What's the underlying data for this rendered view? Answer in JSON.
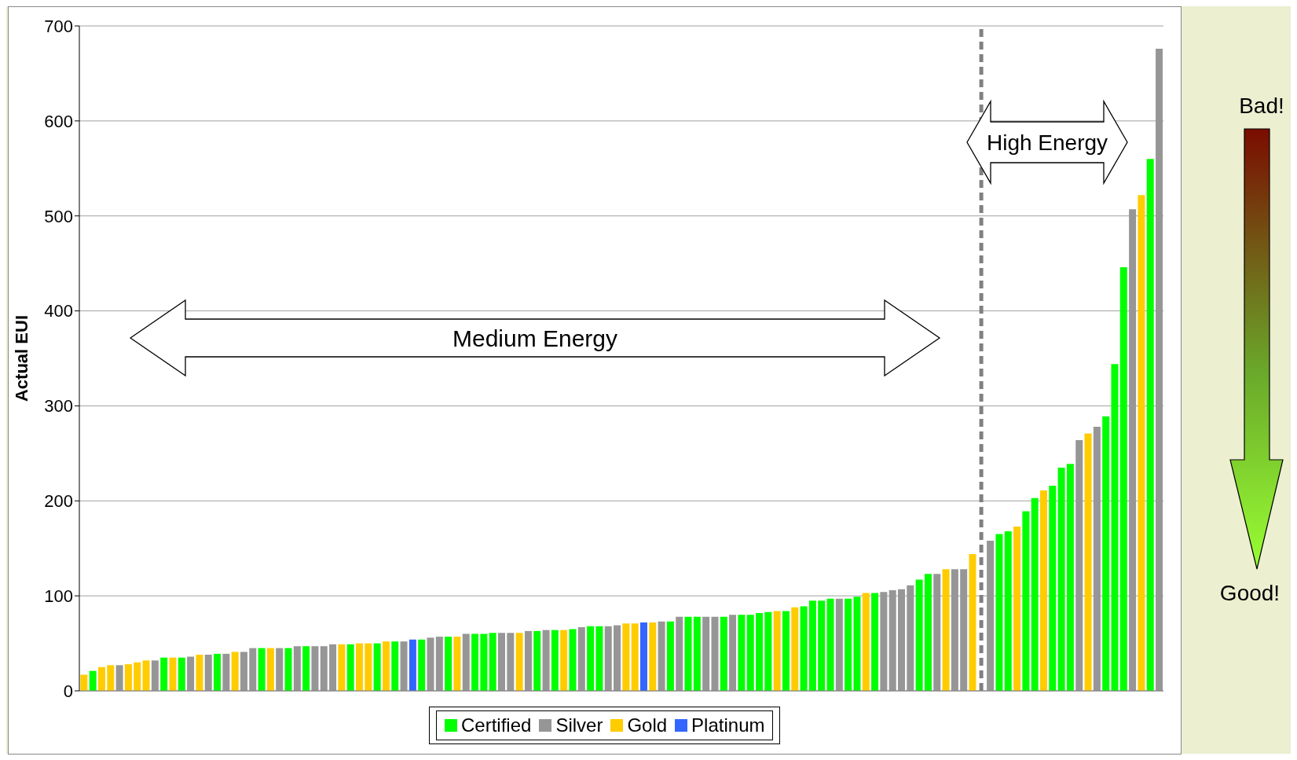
{
  "chart_data": {
    "type": "bar",
    "ylabel": "Actual EUI",
    "stacked": true,
    "categories": [
      null,
      null,
      null,
      null,
      null,
      null,
      null,
      null,
      null,
      null,
      null,
      null,
      null,
      null,
      null,
      null,
      null,
      null,
      null,
      null,
      null,
      null,
      null,
      null,
      null,
      null,
      null,
      null,
      null,
      null,
      null,
      null,
      null,
      null,
      null,
      null,
      null,
      null,
      null,
      null,
      null,
      null,
      null,
      null,
      null,
      null,
      null,
      null,
      null,
      null,
      null,
      null,
      null,
      null,
      null,
      null,
      null,
      null,
      null,
      null,
      null,
      null,
      null,
      null,
      null,
      null,
      null,
      null,
      null,
      null,
      null,
      null,
      null,
      null,
      null,
      null,
      null,
      null,
      null,
      null,
      null,
      null,
      null,
      null,
      null,
      null,
      null,
      null,
      null,
      null,
      null,
      null,
      null,
      null,
      null,
      null,
      null,
      null,
      null,
      null,
      null,
      null,
      null,
      null,
      null,
      null,
      null,
      null,
      null,
      null,
      null,
      null,
      null,
      null,
      null,
      null,
      null,
      null,
      null,
      null,
      null,
      null
    ],
    "series": [
      {
        "name": "Certified",
        "color": "#00ff00",
        "values": [
          null,
          21,
          null,
          null,
          null,
          null,
          null,
          null,
          null,
          35,
          null,
          35,
          null,
          null,
          null,
          39,
          null,
          null,
          null,
          null,
          45,
          null,
          null,
          45,
          null,
          47,
          null,
          null,
          null,
          null,
          49,
          null,
          null,
          50,
          null,
          52,
          null,
          null,
          54,
          null,
          null,
          57,
          null,
          null,
          60,
          60,
          61,
          null,
          null,
          null,
          null,
          63,
          null,
          64,
          null,
          65,
          null,
          68,
          68,
          null,
          null,
          null,
          null,
          null,
          null,
          null,
          73,
          null,
          78,
          78,
          null,
          null,
          78,
          null,
          80,
          80,
          82,
          83,
          null,
          84,
          null,
          89,
          95,
          95,
          97,
          null,
          97,
          99,
          null,
          103,
          null,
          null,
          null,
          null,
          117,
          123,
          null,
          null,
          null,
          null,
          null,
          null,
          null,
          165,
          168,
          null,
          189,
          203,
          null,
          216,
          235,
          239,
          null,
          null,
          null,
          289,
          344,
          446,
          null,
          null,
          560,
          null
        ]
      },
      {
        "name": "Silver",
        "color": "#969696",
        "values": [
          null,
          null,
          null,
          null,
          27,
          null,
          null,
          null,
          32,
          null,
          null,
          null,
          36,
          null,
          38,
          null,
          39,
          null,
          41,
          45,
          null,
          null,
          45,
          null,
          47,
          null,
          47,
          47,
          49,
          null,
          null,
          null,
          null,
          null,
          null,
          null,
          52,
          null,
          null,
          56,
          57,
          null,
          null,
          60,
          null,
          null,
          null,
          61,
          61,
          null,
          63,
          null,
          64,
          null,
          null,
          null,
          67,
          null,
          null,
          68,
          69,
          null,
          null,
          null,
          null,
          73,
          null,
          78,
          null,
          null,
          78,
          78,
          null,
          80,
          null,
          null,
          null,
          null,
          null,
          null,
          null,
          null,
          null,
          null,
          null,
          97,
          null,
          null,
          null,
          null,
          104,
          106,
          107,
          111,
          null,
          null,
          123,
          null,
          128,
          128,
          null,
          null,
          158,
          null,
          null,
          null,
          null,
          null,
          null,
          null,
          null,
          null,
          264,
          null,
          278,
          null,
          null,
          null,
          507,
          null,
          null,
          676
        ]
      },
      {
        "name": "Gold",
        "color": "#ffcc00",
        "values": [
          17,
          null,
          25,
          27,
          null,
          28,
          30,
          32,
          null,
          null,
          35,
          null,
          null,
          38,
          null,
          null,
          null,
          41,
          null,
          null,
          null,
          45,
          null,
          null,
          null,
          null,
          null,
          null,
          null,
          49,
          null,
          50,
          50,
          null,
          52,
          null,
          null,
          null,
          null,
          null,
          null,
          null,
          57,
          null,
          null,
          null,
          null,
          null,
          null,
          61,
          null,
          null,
          null,
          null,
          64,
          null,
          null,
          null,
          null,
          null,
          null,
          71,
          71,
          null,
          72,
          null,
          null,
          null,
          null,
          null,
          null,
          null,
          null,
          null,
          null,
          null,
          null,
          null,
          84,
          null,
          88,
          null,
          null,
          null,
          null,
          null,
          null,
          null,
          103,
          null,
          null,
          null,
          null,
          null,
          null,
          null,
          null,
          128,
          null,
          null,
          144,
          null,
          null,
          null,
          null,
          173,
          null,
          null,
          211,
          null,
          null,
          null,
          null,
          271,
          null,
          null,
          null,
          null,
          null,
          522,
          null,
          null
        ]
      },
      {
        "name": "Platinum",
        "color": "#3366ff",
        "values": [
          null,
          null,
          null,
          null,
          null,
          null,
          null,
          null,
          null,
          null,
          null,
          null,
          null,
          null,
          null,
          null,
          null,
          null,
          null,
          null,
          null,
          null,
          null,
          null,
          null,
          null,
          null,
          null,
          null,
          null,
          null,
          null,
          null,
          null,
          null,
          null,
          null,
          54,
          null,
          null,
          null,
          null,
          null,
          null,
          null,
          null,
          null,
          null,
          null,
          null,
          null,
          null,
          null,
          null,
          null,
          null,
          null,
          null,
          null,
          null,
          null,
          null,
          null,
          72,
          null,
          null,
          null,
          null,
          null,
          null,
          null,
          null,
          null,
          null,
          null,
          null,
          null,
          null,
          null,
          null,
          null,
          null,
          null,
          null,
          null,
          null,
          null,
          null,
          null,
          null,
          null,
          null,
          null,
          null,
          null,
          null,
          null,
          null,
          null,
          null,
          null,
          null,
          null,
          null,
          null,
          null,
          null,
          null,
          null,
          null,
          null,
          null,
          null,
          null,
          null,
          null,
          null,
          null,
          null,
          null,
          null,
          null
        ]
      }
    ],
    "ylim": [
      0,
      700
    ],
    "yticks": [
      0,
      100,
      200,
      300,
      400,
      500,
      600,
      700
    ],
    "grid": "y",
    "legend": "bottom",
    "annotations": [
      "Medium Energy",
      "High Energy",
      "Bad!",
      "Good!"
    ]
  }
}
